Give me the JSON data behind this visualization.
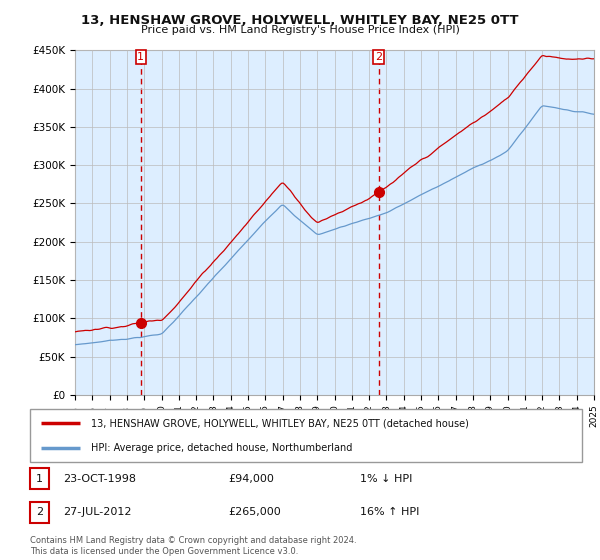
{
  "title": "13, HENSHAW GROVE, HOLYWELL, WHITLEY BAY, NE25 0TT",
  "subtitle": "Price paid vs. HM Land Registry's House Price Index (HPI)",
  "ylabel_ticks": [
    "£0",
    "£50K",
    "£100K",
    "£150K",
    "£200K",
    "£250K",
    "£300K",
    "£350K",
    "£400K",
    "£450K"
  ],
  "ylabel_values": [
    0,
    50000,
    100000,
    150000,
    200000,
    250000,
    300000,
    350000,
    400000,
    450000
  ],
  "ylim": [
    0,
    450000
  ],
  "sale1_year": 1998.8,
  "sale1_price": 94000,
  "sale1_date": "23-OCT-1998",
  "sale1_hpi_text": "1% ↓ HPI",
  "sale2_year": 2012.55,
  "sale2_price": 265000,
  "sale2_date": "27-JUL-2012",
  "sale2_hpi_text": "16% ↑ HPI",
  "legend_line1": "13, HENSHAW GROVE, HOLYWELL, WHITLEY BAY, NE25 0TT (detached house)",
  "legend_line2": "HPI: Average price, detached house, Northumberland",
  "footer": "Contains HM Land Registry data © Crown copyright and database right 2024.\nThis data is licensed under the Open Government Licence v3.0.",
  "line_color_red": "#cc0000",
  "line_color_blue": "#6699cc",
  "vline_color": "#cc0000",
  "plot_bg_color": "#ddeeff",
  "background_color": "#ffffff",
  "grid_color": "#bbbbbb"
}
